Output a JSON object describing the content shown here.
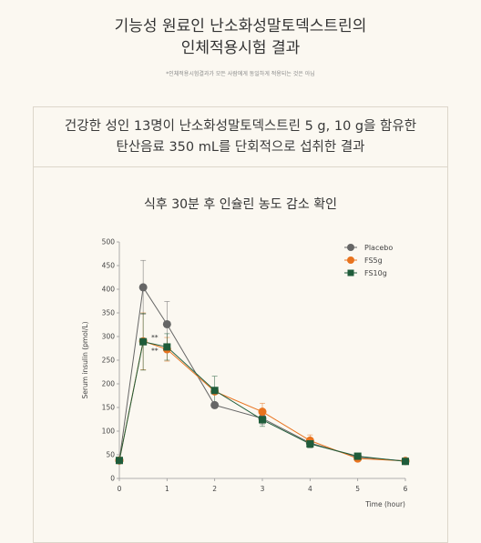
{
  "header": {
    "title_line1": "기능성 원료인 난소화성말토덱스트린의",
    "title_line2": "인체적용시험 결과",
    "note": "*인체적용시험결과가 모든 사람에게 동일하게 적용되는 것은 아님"
  },
  "card": {
    "subtitle_line1": "건강한 성인 13명이 난소화성말토덱스트린 5 g, 10 g을 함유한",
    "subtitle_line2": "탄산음료 350 mL를 단회적으로 섭취한 결과"
  },
  "chart_data": {
    "type": "line",
    "title": "식후 30분 후 인슐린 농도 감소 확인",
    "xlabel": "Time (hour)",
    "ylabel": "Serum insulin (pmol/L)",
    "x": [
      0,
      0.5,
      1,
      2,
      3,
      4,
      5,
      6
    ],
    "xticks": [
      0,
      1,
      2,
      3,
      4,
      5,
      6
    ],
    "yticks": [
      0,
      50,
      100,
      150,
      200,
      250,
      300,
      350,
      400,
      450,
      500
    ],
    "xlim": [
      0,
      6
    ],
    "ylim": [
      0,
      500
    ],
    "legend_position": "top-right",
    "significance_markers": [
      "**",
      "**"
    ],
    "series": [
      {
        "name": "Placebo",
        "color": "#666666",
        "marker": "circle",
        "values": [
          38,
          404,
          326,
          155,
          127,
          75,
          45,
          37
        ],
        "errors": [
          0,
          57,
          48,
          0,
          12,
          10,
          0,
          0
        ]
      },
      {
        "name": "FS5g",
        "color": "#e8731e",
        "marker": "circle",
        "values": [
          38,
          290,
          273,
          184,
          141,
          80,
          42,
          37
        ],
        "errors": [
          0,
          60,
          25,
          0,
          18,
          12,
          0,
          0
        ]
      },
      {
        "name": "FS10g",
        "color": "#1f5c3a",
        "marker": "square",
        "values": [
          38,
          289,
          278,
          186,
          124,
          73,
          47,
          36
        ],
        "errors": [
          0,
          60,
          28,
          30,
          14,
          8,
          0,
          0
        ]
      }
    ]
  }
}
